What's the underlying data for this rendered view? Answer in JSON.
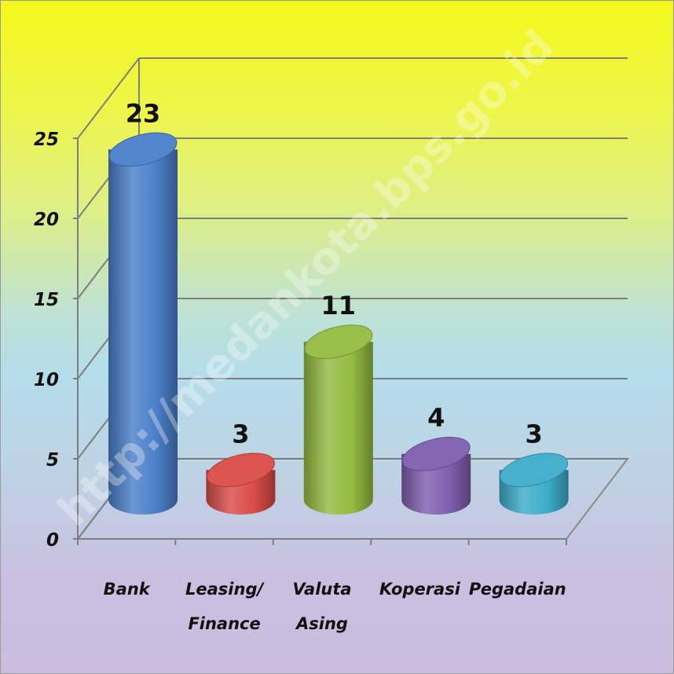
{
  "watermark": "http://medankota.bps.go.id",
  "chart_data": {
    "type": "bar",
    "title": "",
    "xlabel": "",
    "ylabel": "",
    "categories": [
      [
        "Bank"
      ],
      [
        "Leasing/",
        "Finance"
      ],
      [
        "Valuta",
        "Asing"
      ],
      [
        "Koperasi"
      ],
      [
        "Pegadaian"
      ]
    ],
    "values": [
      23,
      3,
      11,
      4,
      3
    ],
    "data_labels": [
      "23",
      "3",
      "11",
      "4",
      "3"
    ],
    "ylim": [
      0,
      25
    ],
    "yticks": [
      "0",
      "5",
      "10",
      "15",
      "20",
      "25"
    ],
    "grid": true,
    "bar_style": "3d-cylinder",
    "colors": [
      "#4a7fc9",
      "#d94c48",
      "#94bb3f",
      "#7e5eae",
      "#3cacca"
    ],
    "background": [
      "#f3f71a",
      "#b4ddea",
      "#cbbde0"
    ]
  }
}
